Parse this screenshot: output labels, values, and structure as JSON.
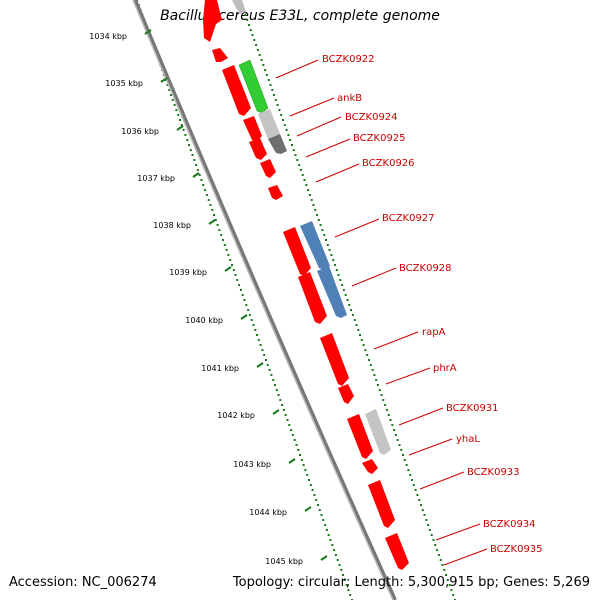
{
  "title": "Bacillus cereus E33L, complete genome",
  "footer": {
    "accession": "Accession: NC_006274",
    "stats": "Topology: circular; Length: 5,300,915 bp; Genes: 5,269"
  },
  "colors": {
    "backbone": "#8a8a8a",
    "gene_red": "#ff0000",
    "gene_green": "#33cc33",
    "gene_blue": "#4f81b8",
    "gene_grey": "#bdbdbd",
    "gene_darkgrey": "#6e6e6e",
    "tick_green": "#1a7a1a",
    "label_red": "#cc0000"
  },
  "ruler_ticks": [
    "1034 kbp",
    "1035 kbp",
    "1036 kbp",
    "1037 kbp",
    "1038 kbp",
    "1039 kbp",
    "1040 kbp",
    "1041 kbp",
    "1042 kbp",
    "1043 kbp",
    "1044 kbp",
    "1045 kbp"
  ],
  "gene_labels": [
    "BCZK0922",
    "ankB",
    "BCZK0924",
    "BCZK0925",
    "BCZK0926",
    "BCZK0927",
    "BCZK0928",
    "rapA",
    "phrA",
    "BCZK0931",
    "yhaL",
    "BCZK0933",
    "BCZK0934",
    "BCZK0935"
  ]
}
